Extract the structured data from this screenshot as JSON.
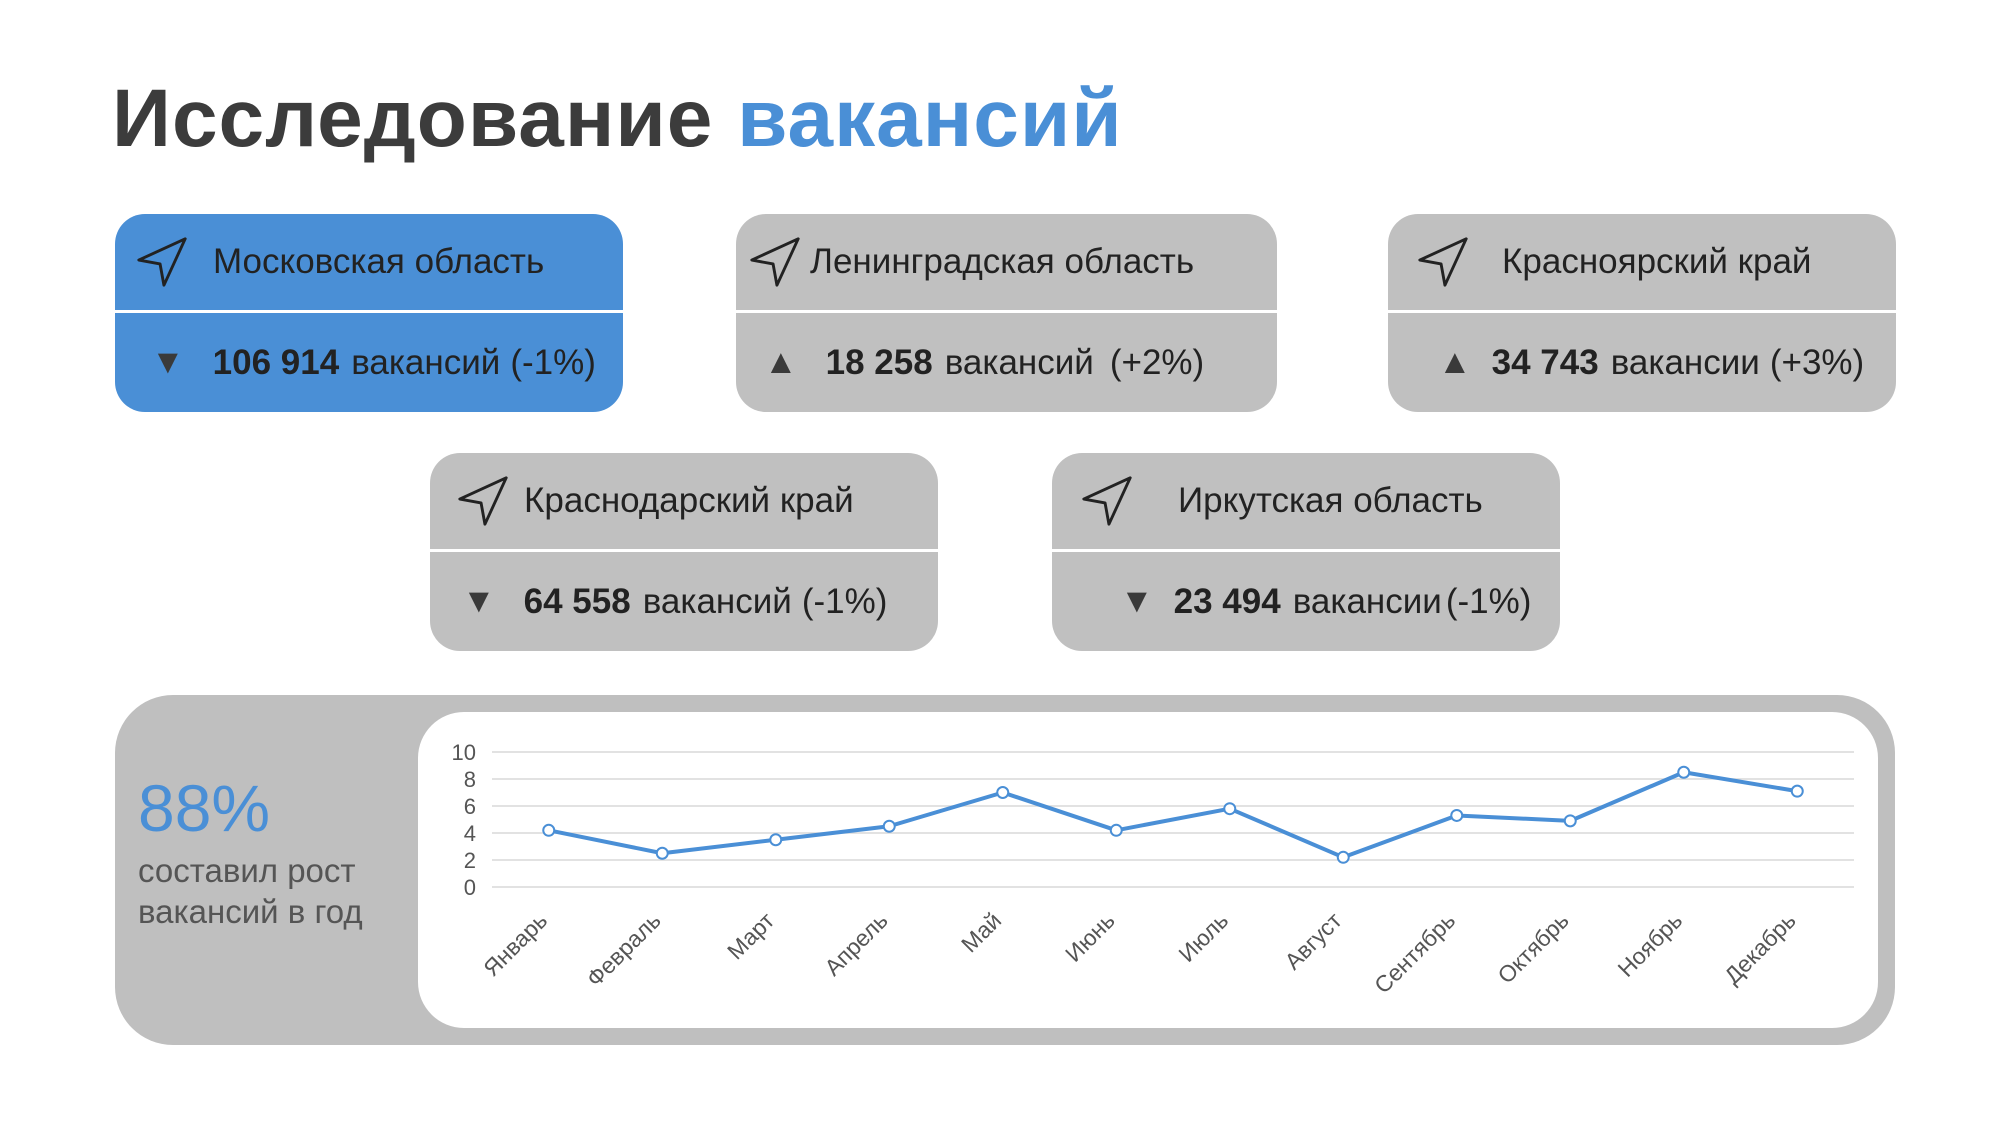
{
  "title": {
    "part1": "Исследование",
    "part2": "вакансий"
  },
  "colors": {
    "accent": "#4a8fd6",
    "card": "#c0c0c0",
    "text": "#3c3c3c"
  },
  "regions": [
    {
      "name": "Московская область",
      "count": "106 914",
      "word": "вакансий",
      "change": "(-1%)",
      "trend": "▼",
      "trend_icon": "down-triangle-icon",
      "icon": "navigation-arrow-icon",
      "active": true
    },
    {
      "name": "Ленинградская область",
      "count": "18 258",
      "word": "вакансий",
      "change": "(+2%)",
      "trend": "▲",
      "trend_icon": "up-triangle-icon",
      "icon": "navigation-arrow-icon",
      "active": false
    },
    {
      "name": "Красноярский край",
      "count": "34 743",
      "word": "вакансии",
      "change": "(+3%)",
      "trend": "▲",
      "trend_icon": "up-triangle-icon",
      "icon": "navigation-arrow-icon",
      "active": false
    },
    {
      "name": "Краснодарский край",
      "count": "64 558",
      "word": "вакансий",
      "change": "(-1%)",
      "trend": "▼",
      "trend_icon": "down-triangle-icon",
      "icon": "navigation-arrow-icon",
      "active": false
    },
    {
      "name": "Иркутская область",
      "count": "23 494",
      "word": "вакансии",
      "change": "(-1%)",
      "trend": "▼",
      "trend_icon": "down-triangle-icon",
      "icon": "navigation-arrow-icon",
      "active": false
    }
  ],
  "stat": {
    "value": "88%",
    "caption": "составил рост вакансий в год"
  },
  "chart_data": {
    "type": "line",
    "categories": [
      "Январь",
      "Февраль",
      "Март",
      "Апрель",
      "Май",
      "Июнь",
      "Июль",
      "Август",
      "Сентябрь",
      "Октябрь",
      "Ноябрь",
      "Декабрь"
    ],
    "series": [
      {
        "values": [
          4.2,
          2.5,
          3.5,
          4.5,
          7.0,
          4.2,
          5.8,
          2.2,
          5.3,
          4.9,
          8.5,
          7.1
        ]
      }
    ],
    "ylim": [
      0,
      10
    ],
    "yticks": [
      0,
      2,
      4,
      6,
      8,
      10
    ],
    "grid": true,
    "line_color": "#4a8fd6"
  }
}
